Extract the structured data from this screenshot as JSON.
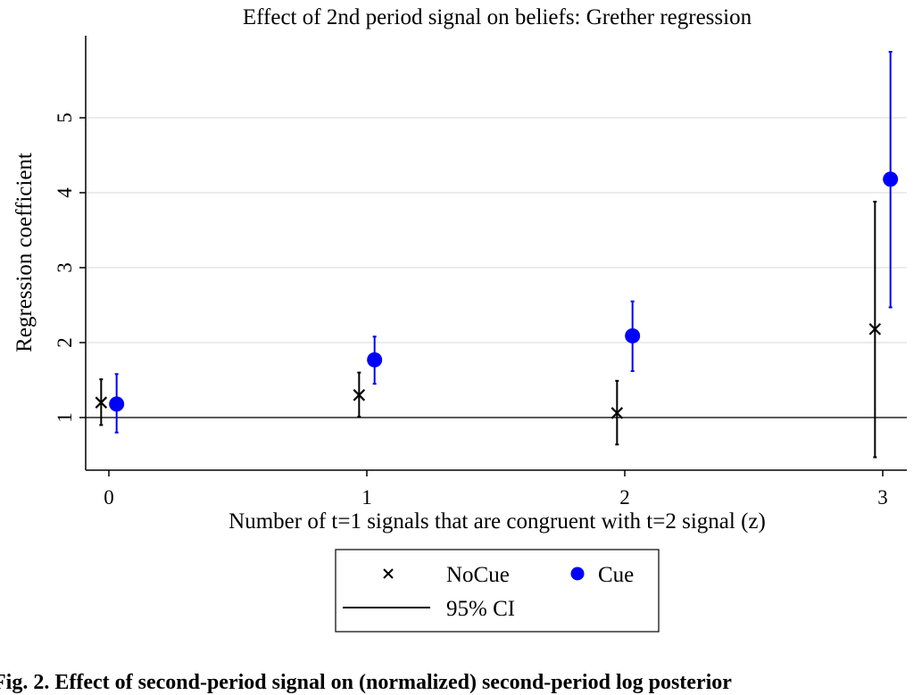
{
  "chart_data": {
    "type": "scatter",
    "title": "Effect of 2nd period signal on beliefs: Grether regression",
    "xlabel": "Number of t=1 signals that are congruent with t=2 signal (z)",
    "ylabel": "Regression coefficient",
    "x_ticks": [
      "0",
      "1",
      "2",
      "3"
    ],
    "y_ticks": [
      "1",
      "2",
      "3",
      "4",
      "5"
    ],
    "xlim": [
      -0.08,
      3.08
    ],
    "ylim": [
      0.3,
      6.0
    ],
    "reference_line": 1,
    "grid": "horizontal",
    "legend_position": "bottom",
    "series": [
      {
        "name": "NoCue",
        "marker": "x",
        "color": "#000000",
        "offset": -0.03,
        "x": [
          0,
          1,
          2,
          3
        ],
        "y": [
          1.2,
          1.3,
          1.06,
          2.18
        ],
        "ci_low": [
          0.9,
          1.01,
          0.64,
          0.47
        ],
        "ci_high": [
          1.51,
          1.6,
          1.49,
          3.88
        ]
      },
      {
        "name": "Cue",
        "marker": "circle",
        "color": "#0000ff",
        "offset": 0.03,
        "x": [
          0,
          1,
          2,
          3
        ],
        "y": [
          1.18,
          1.77,
          2.09,
          4.18
        ],
        "ci_low": [
          0.8,
          1.45,
          1.62,
          2.47
        ],
        "ci_high": [
          1.58,
          2.08,
          2.55,
          5.88
        ]
      }
    ],
    "legend": {
      "items": [
        "NoCue",
        "Cue"
      ],
      "ci_label": "95% CI"
    }
  },
  "caption": "Fig. 2. Effect of second-period signal on (normalized) second-period log posterior"
}
